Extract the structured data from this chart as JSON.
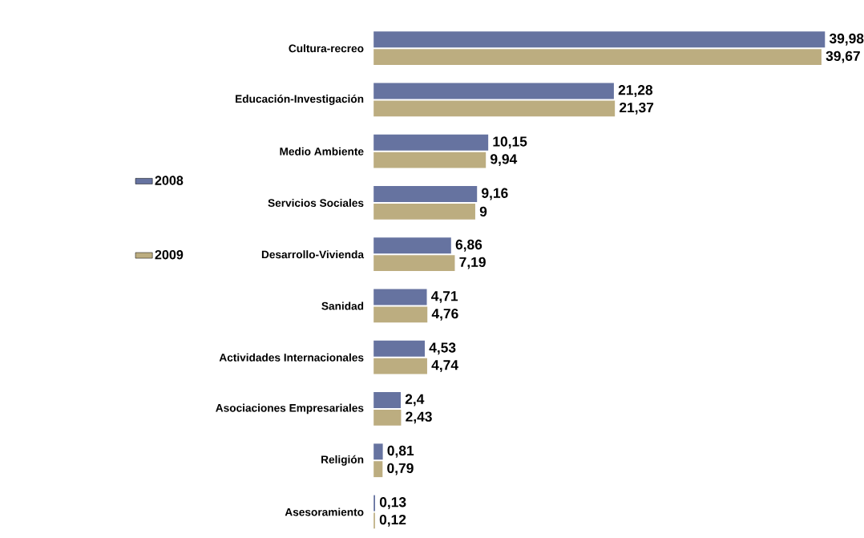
{
  "chart_data": {
    "type": "bar",
    "orientation": "horizontal",
    "categories": [
      "Cultura-recreo",
      "Educación-Investigación",
      "Medio Ambiente",
      "Servicios Sociales",
      "Desarrollo-Vivienda",
      "Sanidad",
      "Actividades Internacionales",
      "Asociaciones Empresariales",
      "Religión",
      "Asesoramiento"
    ],
    "series": [
      {
        "name": "2008",
        "color": "#6673a0",
        "values": [
          39.98,
          21.28,
          10.15,
          9.16,
          6.86,
          4.71,
          4.53,
          2.4,
          0.81,
          0.13
        ],
        "value_labels": [
          "39,98",
          "21,28",
          "10,15",
          "9,16",
          "6,86",
          "4,71",
          "4,53",
          "2,4",
          "0,81",
          "0,13"
        ]
      },
      {
        "name": "2009",
        "color": "#bcad80",
        "values": [
          39.67,
          21.37,
          9.94,
          9,
          7.19,
          4.76,
          4.74,
          2.43,
          0.79,
          0.12
        ],
        "value_labels": [
          "39,67",
          "21,37",
          "9,94",
          "9",
          "7,19",
          "4,76",
          "4,74",
          "2,43",
          "0,79",
          "0,12"
        ]
      }
    ],
    "xlim": [
      0,
      40
    ],
    "tick_labels": "y",
    "legend": "left"
  }
}
